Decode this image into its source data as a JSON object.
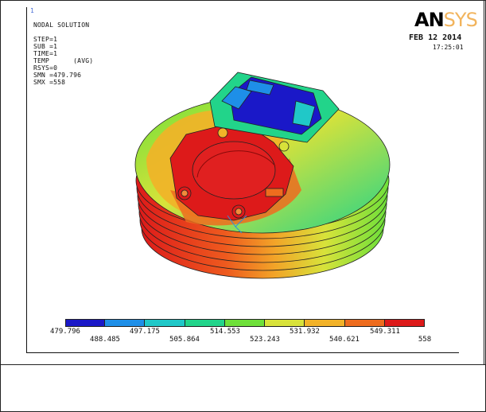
{
  "window": {
    "number": "1"
  },
  "header": {
    "lines": [
      "NODAL SOLUTION",
      "STEP=1",
      "SUB =1",
      "TIME=1",
      "TEMP      (AVG)",
      "RSYS=0",
      "SMN =479.796",
      "SMX =558"
    ]
  },
  "brand": {
    "an": "AN",
    "sys": "SYS",
    "an_color": "#000000",
    "sys_color": "#f2b45d"
  },
  "date": "FEB 12 2014",
  "time": "17:25:01",
  "legend": {
    "colors": [
      "#1a18c8",
      "#1e8fe8",
      "#20c8c8",
      "#22d48a",
      "#6ee03a",
      "#d8e23a",
      "#f2b228",
      "#ee6c1e",
      "#dd1a1a"
    ],
    "labels_top": [
      "479.796",
      "497.175",
      "514.553",
      "531.932",
      "549.311"
    ],
    "labels_bottom": [
      "488.485",
      "505.864",
      "523.243",
      "540.621",
      "558"
    ]
  }
}
